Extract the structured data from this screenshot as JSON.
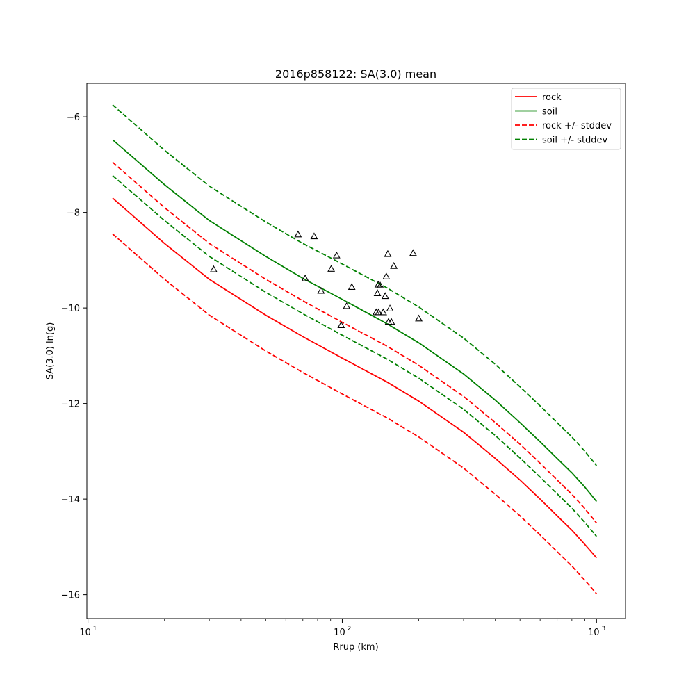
{
  "chart_data": {
    "type": "line",
    "title": "2016p858122: SA(3.0) mean",
    "xlabel": "Rrup (km)",
    "ylabel": "SA(3.0) ln(g)",
    "x_scale": "log",
    "xlim": [
      9.9,
      1300
    ],
    "ylim": [
      -16.5,
      -5.3
    ],
    "x_ticks": [
      {
        "value": 10,
        "base": "10",
        "exp": "1"
      },
      {
        "value": 100,
        "base": "10",
        "exp": "2"
      },
      {
        "value": 1000,
        "base": "10",
        "exp": "3"
      }
    ],
    "y_ticks": [
      {
        "value": -6,
        "label": "−6"
      },
      {
        "value": -8,
        "label": "−8"
      },
      {
        "value": -10,
        "label": "−10"
      },
      {
        "value": -12,
        "label": "−12"
      },
      {
        "value": -14,
        "label": "−14"
      },
      {
        "value": -16,
        "label": "−16"
      }
    ],
    "grid": false,
    "legend_position": "top-right",
    "x": [
      12.5,
      20,
      30,
      50,
      70,
      100,
      150,
      200,
      300,
      400,
      500,
      600,
      700,
      800,
      900,
      1000
    ],
    "series": [
      {
        "name": "rock",
        "color": "#ff0000",
        "style": "solid",
        "values": [
          -7.7,
          -8.65,
          -9.4,
          -10.15,
          -10.6,
          -11.05,
          -11.55,
          -11.95,
          -12.6,
          -13.15,
          -13.6,
          -14.0,
          -14.35,
          -14.65,
          -14.95,
          -15.23
        ]
      },
      {
        "name": "soil",
        "color": "#008000",
        "style": "solid",
        "values": [
          -6.48,
          -7.42,
          -8.17,
          -8.92,
          -9.38,
          -9.82,
          -10.33,
          -10.73,
          -11.38,
          -11.93,
          -12.4,
          -12.8,
          -13.15,
          -13.45,
          -13.75,
          -14.05
        ]
      },
      {
        "name": "rock +/- stddev",
        "color": "#ff0000",
        "style": "dashed",
        "values": [
          -6.95,
          -7.9,
          -8.65,
          -9.4,
          -9.85,
          -10.3,
          -10.8,
          -11.2,
          -11.85,
          -12.4,
          -12.85,
          -13.25,
          -13.6,
          -13.9,
          -14.2,
          -14.5
        ],
        "lower": [
          -8.45,
          -9.4,
          -10.15,
          -10.9,
          -11.35,
          -11.8,
          -12.3,
          -12.7,
          -13.35,
          -13.9,
          -14.35,
          -14.75,
          -15.1,
          -15.4,
          -15.7,
          -15.98
        ]
      },
      {
        "name": "soil +/- stddev",
        "color": "#008000",
        "style": "dashed",
        "values": [
          -5.75,
          -6.7,
          -7.45,
          -8.2,
          -8.65,
          -9.08,
          -9.58,
          -9.98,
          -10.63,
          -11.18,
          -11.65,
          -12.05,
          -12.4,
          -12.7,
          -13.0,
          -13.3
        ],
        "lower": [
          -7.23,
          -8.17,
          -8.92,
          -9.67,
          -10.12,
          -10.57,
          -11.07,
          -11.47,
          -12.12,
          -12.67,
          -13.14,
          -13.54,
          -13.89,
          -14.19,
          -14.49,
          -14.78
        ]
      }
    ],
    "observations": {
      "marker": "triangle",
      "color": "#000000",
      "points": [
        {
          "x": 31.2,
          "y": -9.19
        },
        {
          "x": 67,
          "y": -8.46
        },
        {
          "x": 71.5,
          "y": -9.38
        },
        {
          "x": 77.5,
          "y": -8.5
        },
        {
          "x": 82.5,
          "y": -9.64
        },
        {
          "x": 90.5,
          "y": -9.18
        },
        {
          "x": 95,
          "y": -8.9
        },
        {
          "x": 99,
          "y": -10.36
        },
        {
          "x": 104,
          "y": -9.96
        },
        {
          "x": 109,
          "y": -9.56
        },
        {
          "x": 136,
          "y": -10.09
        },
        {
          "x": 137.5,
          "y": -9.69
        },
        {
          "x": 138.5,
          "y": -9.51
        },
        {
          "x": 139,
          "y": -10.09
        },
        {
          "x": 141,
          "y": -9.53
        },
        {
          "x": 145,
          "y": -10.09
        },
        {
          "x": 147.5,
          "y": -9.75
        },
        {
          "x": 149,
          "y": -9.34
        },
        {
          "x": 151,
          "y": -8.87
        },
        {
          "x": 152,
          "y": -10.29
        },
        {
          "x": 154,
          "y": -10.01
        },
        {
          "x": 156,
          "y": -10.29
        },
        {
          "x": 159.5,
          "y": -9.12
        },
        {
          "x": 190,
          "y": -8.85
        },
        {
          "x": 200,
          "y": -10.22
        }
      ]
    }
  }
}
